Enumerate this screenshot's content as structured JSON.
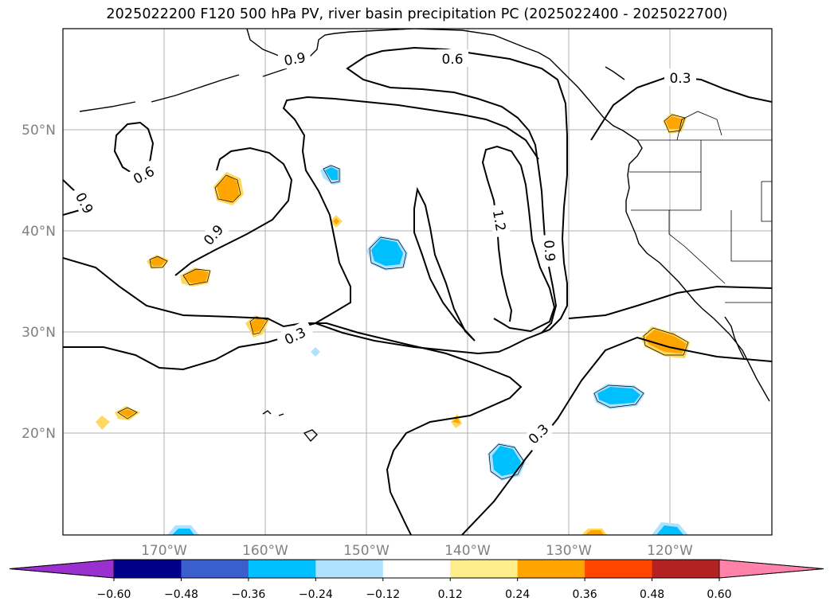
{
  "title": "2025022200 F120 500 hPa PV, river basin precipitation PC (2025022400 - 2025022700)",
  "lat_labels": [
    "50°N",
    "40°N",
    "30°N",
    "20°N"
  ],
  "lon_labels": [
    "170°W",
    "160°W",
    "150°W",
    "140°W",
    "130°W",
    "120°W"
  ],
  "contour_labels": [
    "0.6",
    "0.3",
    "0.6",
    "0.9",
    "0.9",
    "1.2",
    "0.9",
    "0.3",
    "0.3",
    "0.9"
  ],
  "colorbar": {
    "ticks": [
      "−0.60",
      "−0.48",
      "−0.36",
      "−0.24",
      "−0.12",
      "0.12",
      "0.24",
      "0.36",
      "0.48",
      "0.60"
    ],
    "colors": [
      "#9b30d0",
      "#00008b",
      "#3a5fcd",
      "#00bfff",
      "#b0e2ff",
      "#ffffff",
      "#ffec8b",
      "#ffa500",
      "#ff4500",
      "#b22222",
      "#ff82ab"
    ]
  },
  "fill_colors": {
    "orange": "#ffa500",
    "yellow": "#ffd860",
    "deep_sky_blue": "#00bfff",
    "light_blue": "#b0e2ff"
  }
}
